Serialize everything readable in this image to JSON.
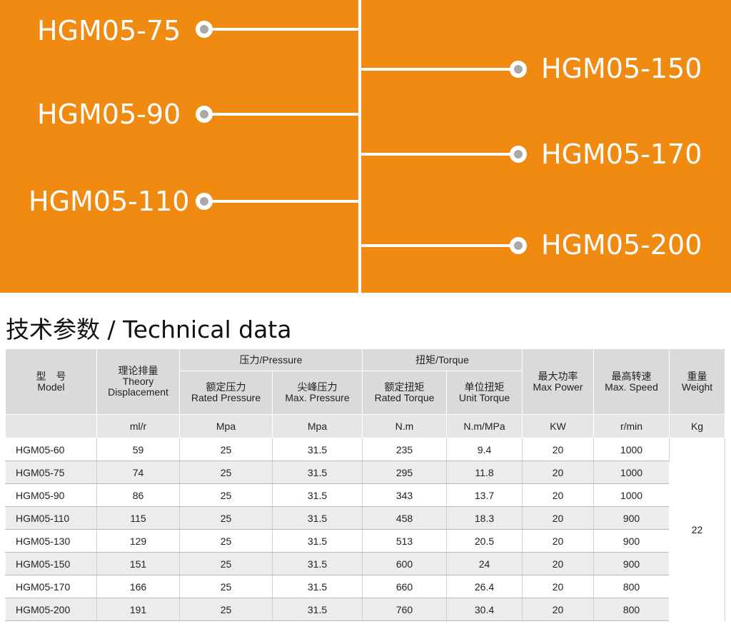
{
  "banner": {
    "left_models": [
      "HGM05-75",
      "HGM05-90",
      "HGM05-110"
    ],
    "right_models": [
      "HGM05-150",
      "HGM05-170",
      "HGM05-200"
    ]
  },
  "section_title": "技术参数 / Technical data",
  "table": {
    "model_header": {
      "cn": "型　号",
      "en": "Model"
    },
    "displacement_header": {
      "cn": "理论排量",
      "en1": "Theory",
      "en2": "Displacement"
    },
    "pressure_group": "压力/Pressure",
    "rated_pressure": {
      "cn": "额定压力",
      "en": "Rated Pressure"
    },
    "max_pressure": {
      "cn": "尖峰压力",
      "en": "Max. Pressure"
    },
    "torque_group": "扭矩/Torque",
    "rated_torque": {
      "cn": "额定扭矩",
      "en": "Rated Torque"
    },
    "unit_torque": {
      "cn": "单位扭矩",
      "en": "Unit Torque"
    },
    "max_power": {
      "cn": "最大功率",
      "en": "Max Power"
    },
    "max_speed": {
      "cn": "最高转速",
      "en": "Max. Speed"
    },
    "weight": {
      "cn": "重量",
      "en": "Weight"
    },
    "units": [
      "ml/r",
      "Mpa",
      "Mpa",
      "N.m",
      "N.m/MPa",
      "KW",
      "r/min",
      "Kg"
    ],
    "rows": [
      [
        "HGM05-60",
        "59",
        "25",
        "31.5",
        "235",
        "9.4",
        "20",
        "1000"
      ],
      [
        "HGM05-75",
        "74",
        "25",
        "31.5",
        "295",
        "11.8",
        "20",
        "1000"
      ],
      [
        "HGM05-90",
        "86",
        "25",
        "31.5",
        "343",
        "13.7",
        "20",
        "1000"
      ],
      [
        "HGM05-110",
        "115",
        "25",
        "31.5",
        "458",
        "18.3",
        "20",
        "900"
      ],
      [
        "HGM05-130",
        "129",
        "25",
        "31.5",
        "513",
        "20.5",
        "20",
        "900"
      ],
      [
        "HGM05-150",
        "151",
        "25",
        "31.5",
        "600",
        "24",
        "20",
        "900"
      ],
      [
        "HGM05-170",
        "166",
        "25",
        "31.5",
        "660",
        "26.4",
        "20",
        "800"
      ],
      [
        "HGM05-200",
        "191",
        "25",
        "31.5",
        "760",
        "30.4",
        "20",
        "800"
      ]
    ],
    "weight_value": "22"
  }
}
